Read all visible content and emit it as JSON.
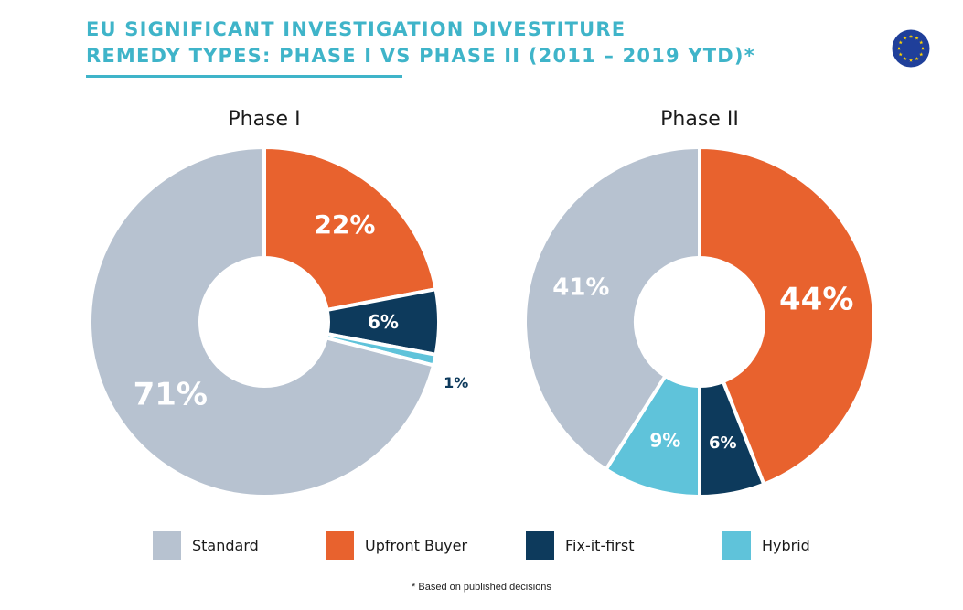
{
  "title_lines": [
    "EU SIGNIFICANT INVESTIGATION DIVESTITURE",
    "REMEDY TYPES: PHASE I VS PHASE II (2011 – 2019 YTD)*"
  ],
  "footnote": "* Based on published decisions",
  "icons": {
    "flag": "eu-flag-icon"
  },
  "colors": {
    "title": "#3fb4c9",
    "Standard": "#b7c2d0",
    "Upfront Buyer": "#e8622e",
    "Fix-it-first": "#0d3a5c",
    "Hybrid": "#5fc3da"
  },
  "legend": [
    {
      "label": "Standard",
      "color": "#b7c2d0"
    },
    {
      "label": "Upfront Buyer",
      "color": "#e8622e"
    },
    {
      "label": "Fix-it-first",
      "color": "#0d3a5c"
    },
    {
      "label": "Hybrid",
      "color": "#5fc3da"
    }
  ],
  "chart_data": [
    {
      "type": "pie",
      "title": "Phase I",
      "slices": [
        {
          "label": "Upfront Buyer",
          "value": 22,
          "display": "22%"
        },
        {
          "label": "Fix-it-first",
          "value": 6,
          "display": "6%"
        },
        {
          "label": "Hybrid",
          "value": 1,
          "display": "1%"
        },
        {
          "label": "Standard",
          "value": 71,
          "display": "71%"
        }
      ]
    },
    {
      "type": "pie",
      "title": "Phase II",
      "slices": [
        {
          "label": "Upfront Buyer",
          "value": 44,
          "display": "44%"
        },
        {
          "label": "Fix-it-first",
          "value": 6,
          "display": "6%"
        },
        {
          "label": "Hybrid",
          "value": 9,
          "display": "9%"
        },
        {
          "label": "Standard",
          "value": 41,
          "display": "41%"
        }
      ]
    }
  ]
}
